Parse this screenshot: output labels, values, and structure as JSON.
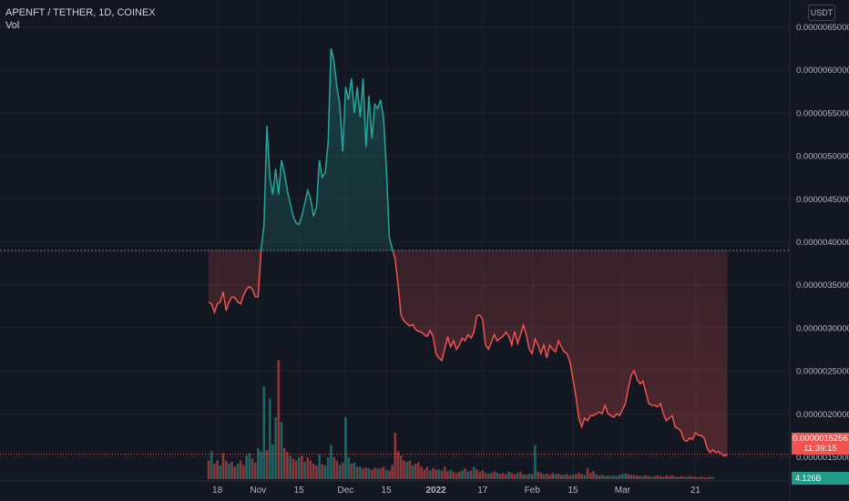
{
  "header": {
    "symbol": "APENFT / TETHER, 1D, COINEX",
    "volume_label": "Vol"
  },
  "price_scale": {
    "currency": "USDT",
    "last_price": "0.0000015256",
    "countdown": "11:39:15",
    "volume_value": "4.126B"
  },
  "colors": {
    "background": "#131722",
    "up": "#26a69a",
    "down": "#ef5350",
    "grid": "#1e222d",
    "text": "#b2b5be"
  },
  "chart_data": {
    "type": "line",
    "title": "APENFT / TETHER, 1D, COINEX",
    "xlabel": "",
    "ylabel": "",
    "y_ticks": [
      "0.0000065000",
      "0.0000060000",
      "0.0000055000",
      "0.0000050000",
      "0.0000045000",
      "0.0000040000",
      "0.0000035000",
      "0.0000030000",
      "0.0000025000",
      "0.0000020000",
      "0.0000015000"
    ],
    "x_tick_labels": [
      "18",
      "Nov",
      "15",
      "Dec",
      "15",
      "2022",
      "17",
      "Feb",
      "15",
      "Mar",
      "21"
    ],
    "ylim": [
      1.2e-06,
      6.6e-06
    ],
    "baseline": 3.9e-06,
    "grid": true,
    "start_date": "2021-10-15",
    "series": [
      {
        "values": [
          3.3,
          3.28,
          3.18,
          3.28,
          3.3,
          3.42,
          3.2,
          3.3,
          3.36,
          3.35,
          3.3,
          3.28,
          3.38,
          3.45,
          3.48,
          3.45,
          3.36,
          3.36,
          3.9,
          4.2,
          5.35,
          4.75,
          4.55,
          4.85,
          4.55,
          4.95,
          4.8,
          4.6,
          4.45,
          4.3,
          4.22,
          4.2,
          4.3,
          4.45,
          4.6,
          4.5,
          4.3,
          4.4,
          4.95,
          4.75,
          4.8,
          5.15,
          6.25,
          6.1,
          5.8,
          5.6,
          5.05,
          5.8,
          5.65,
          5.9,
          5.5,
          5.8,
          5.45,
          5.9,
          5.1,
          5.7,
          5.2,
          5.6,
          5.55,
          5.65,
          5.45,
          4.85,
          4.05,
          3.92,
          3.8,
          3.5,
          3.15,
          3.08,
          3.05,
          3.02,
          3.04,
          2.98,
          2.96,
          2.95,
          2.92,
          2.9,
          2.97,
          2.9,
          2.7,
          2.65,
          2.62,
          2.75,
          2.9,
          2.78,
          2.85,
          2.75,
          2.8,
          2.88,
          2.85,
          2.92,
          2.88,
          2.95,
          3.14,
          3.15,
          3.1,
          2.8,
          2.75,
          2.83,
          2.92,
          2.85,
          2.88,
          2.9,
          2.95,
          2.9,
          2.8,
          2.96,
          2.82,
          2.92,
          3.03,
          2.92,
          2.75,
          2.7,
          2.87,
          2.8,
          2.7,
          2.8,
          2.65,
          2.8,
          2.75,
          2.72,
          2.85,
          2.78,
          2.72,
          2.7,
          2.6,
          2.4,
          2.2,
          1.95,
          1.85,
          1.95,
          1.92,
          1.98,
          1.98,
          2.0,
          2.02,
          2.0,
          2.1,
          2.0,
          1.98,
          1.96,
          2.0,
          1.98,
          2.05,
          2.12,
          2.3,
          2.45,
          2.5,
          2.4,
          2.35,
          2.38,
          2.25,
          2.12,
          2.1,
          2.1,
          2.08,
          2.12,
          2.0,
          1.92,
          1.95,
          1.98,
          1.85,
          1.83,
          1.8,
          1.7,
          1.68,
          1.72,
          1.7,
          1.78,
          1.75,
          1.75,
          1.72,
          1.6,
          1.55,
          1.58,
          1.55,
          1.56,
          1.53,
          1.51,
          1.53
        ]
      }
    ],
    "volume": [
      {
        "up": false,
        "v": 0.3
      },
      {
        "up": true,
        "v": 0.45
      },
      {
        "up": false,
        "v": 0.25
      },
      {
        "up": false,
        "v": 0.3
      },
      {
        "up": true,
        "v": 0.22
      },
      {
        "up": false,
        "v": 0.42
      },
      {
        "up": false,
        "v": 0.3
      },
      {
        "up": true,
        "v": 0.25
      },
      {
        "up": false,
        "v": 0.28
      },
      {
        "up": false,
        "v": 0.2
      },
      {
        "up": true,
        "v": 0.25
      },
      {
        "up": false,
        "v": 0.3
      },
      {
        "up": false,
        "v": 0.23
      },
      {
        "up": true,
        "v": 0.38
      },
      {
        "up": true,
        "v": 0.42
      },
      {
        "up": false,
        "v": 0.33
      },
      {
        "up": false,
        "v": 0.27
      },
      {
        "up": true,
        "v": 0.5
      },
      {
        "up": true,
        "v": 0.45
      },
      {
        "up": true,
        "v": 1.5
      },
      {
        "up": false,
        "v": 0.47
      },
      {
        "up": true,
        "v": 1.3
      },
      {
        "up": true,
        "v": 0.56
      },
      {
        "up": true,
        "v": 1.0
      },
      {
        "up": false,
        "v": 1.92
      },
      {
        "up": true,
        "v": 0.92
      },
      {
        "up": false,
        "v": 0.5
      },
      {
        "up": false,
        "v": 0.44
      },
      {
        "up": true,
        "v": 0.38
      },
      {
        "up": false,
        "v": 0.33
      },
      {
        "up": false,
        "v": 0.3
      },
      {
        "up": true,
        "v": 0.35
      },
      {
        "up": false,
        "v": 0.38
      },
      {
        "up": true,
        "v": 0.28
      },
      {
        "up": false,
        "v": 0.35
      },
      {
        "up": false,
        "v": 0.3
      },
      {
        "up": false,
        "v": 0.25
      },
      {
        "up": false,
        "v": 0.22
      },
      {
        "up": true,
        "v": 0.4
      },
      {
        "up": false,
        "v": 0.24
      },
      {
        "up": true,
        "v": 0.22
      },
      {
        "up": true,
        "v": 0.35
      },
      {
        "up": true,
        "v": 0.55
      },
      {
        "up": false,
        "v": 0.35
      },
      {
        "up": false,
        "v": 0.3
      },
      {
        "up": true,
        "v": 0.23
      },
      {
        "up": false,
        "v": 0.27
      },
      {
        "up": true,
        "v": 1.0
      },
      {
        "up": true,
        "v": 0.35
      },
      {
        "up": false,
        "v": 0.25
      },
      {
        "up": true,
        "v": 0.27
      },
      {
        "up": false,
        "v": 0.2
      },
      {
        "up": true,
        "v": 0.2
      },
      {
        "up": false,
        "v": 0.17
      },
      {
        "up": false,
        "v": 0.19
      },
      {
        "up": true,
        "v": 0.18
      },
      {
        "up": false,
        "v": 0.15
      },
      {
        "up": false,
        "v": 0.18
      },
      {
        "up": true,
        "v": 0.17
      },
      {
        "up": false,
        "v": 0.17
      },
      {
        "up": false,
        "v": 0.2
      },
      {
        "up": true,
        "v": 0.15
      },
      {
        "up": false,
        "v": 0.14
      },
      {
        "up": false,
        "v": 0.23
      },
      {
        "up": false,
        "v": 0.75
      },
      {
        "up": false,
        "v": 0.45
      },
      {
        "up": false,
        "v": 0.38
      },
      {
        "up": false,
        "v": 0.3
      },
      {
        "up": true,
        "v": 0.28
      },
      {
        "up": false,
        "v": 0.3
      },
      {
        "up": true,
        "v": 0.22
      },
      {
        "up": false,
        "v": 0.25
      },
      {
        "up": false,
        "v": 0.27
      },
      {
        "up": false,
        "v": 0.2
      },
      {
        "up": false,
        "v": 0.16
      },
      {
        "up": false,
        "v": 0.2
      },
      {
        "up": true,
        "v": 0.14
      },
      {
        "up": false,
        "v": 0.18
      },
      {
        "up": false,
        "v": 0.15
      },
      {
        "up": true,
        "v": 0.16
      },
      {
        "up": false,
        "v": 0.14
      },
      {
        "up": false,
        "v": 0.2
      },
      {
        "up": false,
        "v": 0.13
      },
      {
        "up": true,
        "v": 0.15
      },
      {
        "up": false,
        "v": 0.12
      },
      {
        "up": false,
        "v": 0.1
      },
      {
        "up": false,
        "v": 0.12
      },
      {
        "up": true,
        "v": 0.14
      },
      {
        "up": false,
        "v": 0.17
      },
      {
        "up": true,
        "v": 0.12
      },
      {
        "up": false,
        "v": 0.14
      },
      {
        "up": true,
        "v": 0.2
      },
      {
        "up": false,
        "v": 0.16
      },
      {
        "up": false,
        "v": 0.12
      },
      {
        "up": false,
        "v": 0.14
      },
      {
        "up": false,
        "v": 0.1
      },
      {
        "up": true,
        "v": 0.09
      },
      {
        "up": false,
        "v": 0.1
      },
      {
        "up": false,
        "v": 0.12
      },
      {
        "up": true,
        "v": 0.11
      },
      {
        "up": false,
        "v": 0.09
      },
      {
        "up": false,
        "v": 0.1
      },
      {
        "up": false,
        "v": 0.08
      },
      {
        "up": true,
        "v": 0.12
      },
      {
        "up": false,
        "v": 0.1
      },
      {
        "up": false,
        "v": 0.08
      },
      {
        "up": true,
        "v": 0.1
      },
      {
        "up": false,
        "v": 0.12
      },
      {
        "up": true,
        "v": 0.08
      },
      {
        "up": false,
        "v": 0.07
      },
      {
        "up": true,
        "v": 0.09
      },
      {
        "up": false,
        "v": 0.08
      },
      {
        "up": true,
        "v": 0.55
      },
      {
        "up": false,
        "v": 0.12
      },
      {
        "up": false,
        "v": 0.1
      },
      {
        "up": true,
        "v": 0.08
      },
      {
        "up": false,
        "v": 0.09
      },
      {
        "up": false,
        "v": 0.07
      },
      {
        "up": false,
        "v": 0.1
      },
      {
        "up": true,
        "v": 0.08
      },
      {
        "up": false,
        "v": 0.09
      },
      {
        "up": false,
        "v": 0.07
      },
      {
        "up": true,
        "v": 0.07
      },
      {
        "up": false,
        "v": 0.08
      },
      {
        "up": false,
        "v": 0.06
      },
      {
        "up": true,
        "v": 0.07
      },
      {
        "up": false,
        "v": 0.08
      },
      {
        "up": false,
        "v": 0.1
      },
      {
        "up": false,
        "v": 0.08
      },
      {
        "up": true,
        "v": 0.07
      },
      {
        "up": false,
        "v": 0.18
      },
      {
        "up": false,
        "v": 0.1
      },
      {
        "up": false,
        "v": 0.13
      },
      {
        "up": true,
        "v": 0.08
      },
      {
        "up": false,
        "v": 0.06
      },
      {
        "up": true,
        "v": 0.07
      },
      {
        "up": false,
        "v": 0.05
      },
      {
        "up": true,
        "v": 0.06
      },
      {
        "up": false,
        "v": 0.05
      },
      {
        "up": true,
        "v": 0.06
      },
      {
        "up": false,
        "v": 0.05
      },
      {
        "up": true,
        "v": 0.07
      },
      {
        "up": true,
        "v": 0.08
      },
      {
        "up": true,
        "v": 0.09
      },
      {
        "up": false,
        "v": 0.08
      },
      {
        "up": false,
        "v": 0.07
      },
      {
        "up": true,
        "v": 0.06
      },
      {
        "up": false,
        "v": 0.06
      },
      {
        "up": false,
        "v": 0.05
      },
      {
        "up": true,
        "v": 0.05
      },
      {
        "up": false,
        "v": 0.06
      },
      {
        "up": false,
        "v": 0.05
      },
      {
        "up": true,
        "v": 0.04
      },
      {
        "up": false,
        "v": 0.05
      },
      {
        "up": false,
        "v": 0.06
      },
      {
        "up": false,
        "v": 0.05
      },
      {
        "up": true,
        "v": 0.04
      },
      {
        "up": false,
        "v": 0.06
      },
      {
        "up": false,
        "v": 0.05
      },
      {
        "up": false,
        "v": 0.06
      },
      {
        "up": false,
        "v": 0.04
      },
      {
        "up": true,
        "v": 0.04
      },
      {
        "up": false,
        "v": 0.05
      },
      {
        "up": false,
        "v": 0.04
      },
      {
        "up": true,
        "v": 0.04
      },
      {
        "up": false,
        "v": 0.05
      },
      {
        "up": false,
        "v": 0.04
      },
      {
        "up": false,
        "v": 0.04
      },
      {
        "up": false,
        "v": 0.03
      },
      {
        "up": false,
        "v": 0.04
      },
      {
        "up": false,
        "v": 0.03
      },
      {
        "up": false,
        "v": 0.03
      },
      {
        "up": false,
        "v": 0.04
      },
      {
        "up": true,
        "v": 0.03
      }
    ]
  }
}
